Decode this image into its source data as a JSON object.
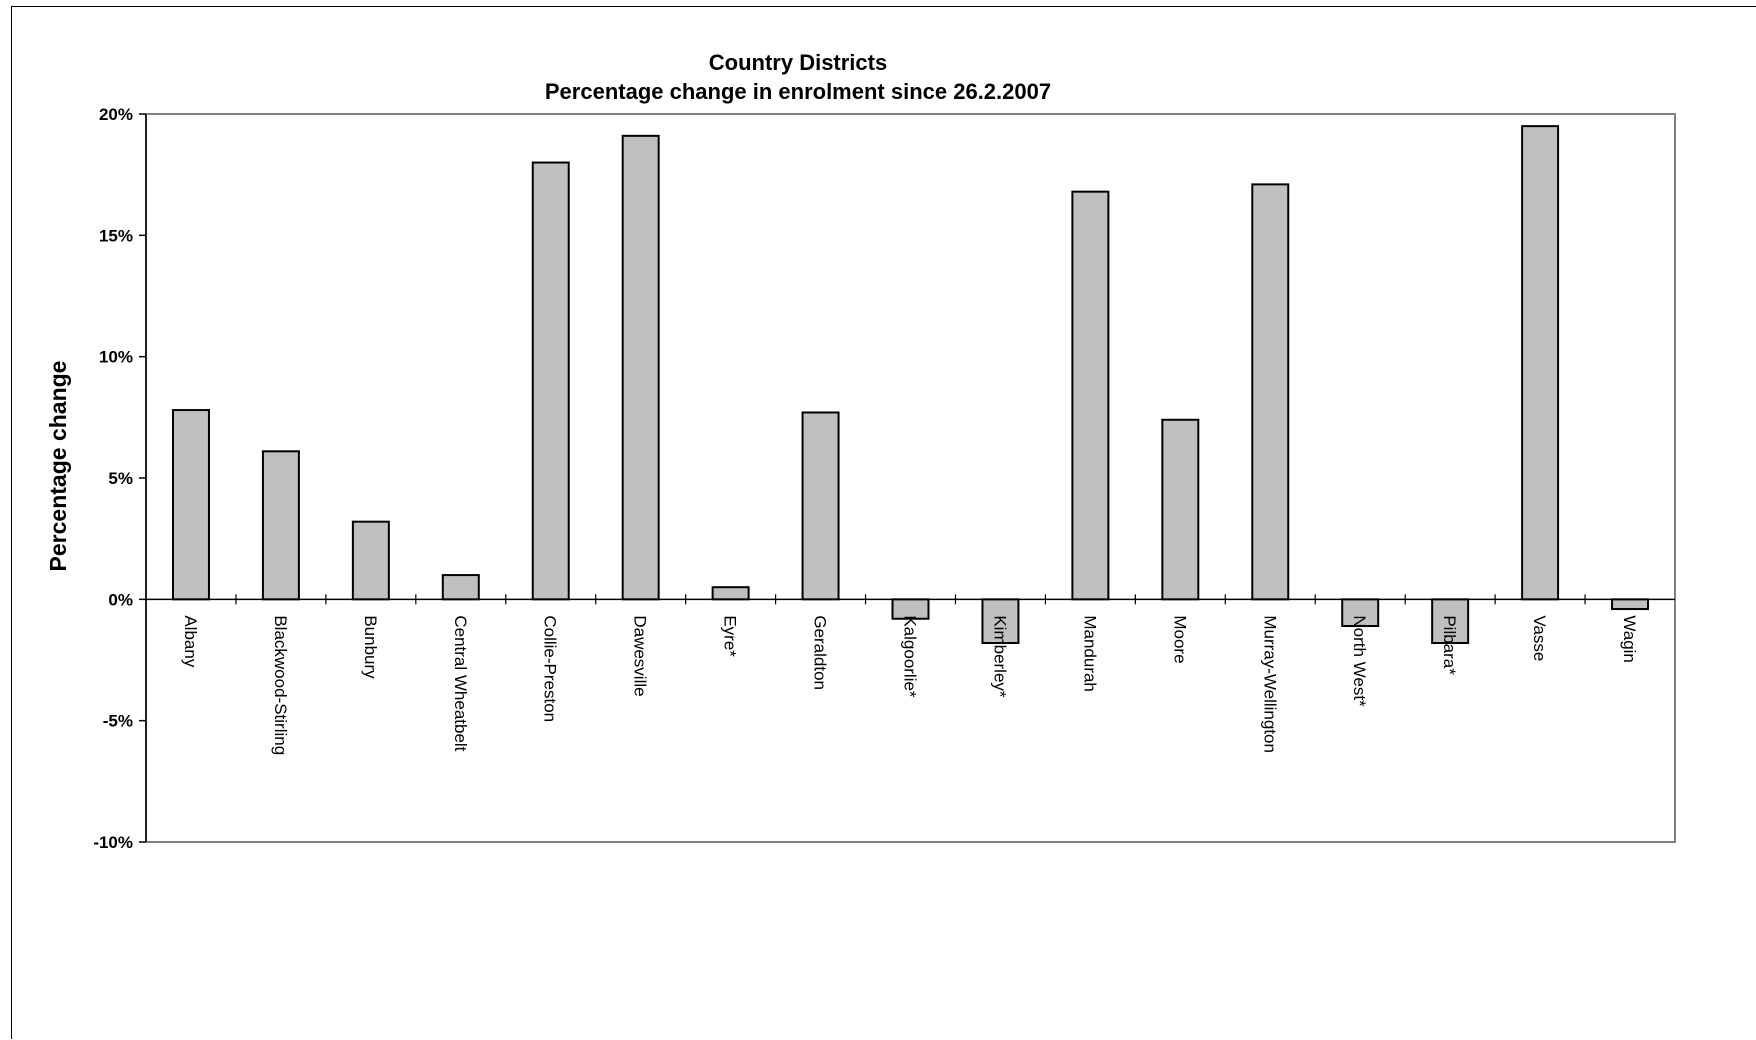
{
  "chart_data": {
    "type": "bar",
    "title": "Country Districts",
    "subtitle": "Percentage change in enrolment since 26.2.2007",
    "xlabel": "",
    "ylabel": "Percentage change",
    "ylim": [
      -10,
      20
    ],
    "y_ticks": [
      20,
      15,
      10,
      5,
      0,
      -5,
      -10
    ],
    "y_tick_labels": [
      "20%",
      "15%",
      "10%",
      "5%",
      "0%",
      "-5%",
      "-10%"
    ],
    "y_unit": "%",
    "grid": false,
    "legend": "none",
    "categories": [
      "Albany",
      "Blackwood-Stirling",
      "Bunbury",
      "Central Wheatbelt",
      "Collie-Preston",
      "Dawesville",
      "Eyre*",
      "Geraldton",
      "Kalgoorlie*",
      "Kimberley*",
      "Mandurah",
      "Moore",
      "Murray-Wellington",
      "North West*",
      "Pilbara*",
      "Vasse",
      "Wagin"
    ],
    "values": [
      7.8,
      6.1,
      3.2,
      1.0,
      18.0,
      19.1,
      0.5,
      7.7,
      -0.8,
      -1.8,
      16.8,
      7.4,
      17.1,
      -1.1,
      -1.8,
      19.5,
      -0.4
    ],
    "colors": {
      "bar_fill": "#c0c0c0",
      "bar_stroke": "#000000",
      "plot_border": "#808080",
      "axis": "#000000"
    }
  }
}
